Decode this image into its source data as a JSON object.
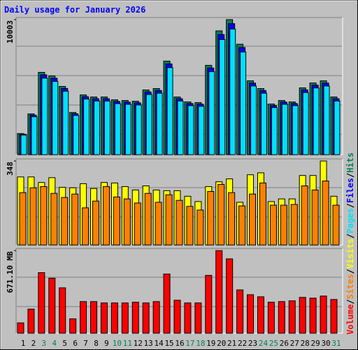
{
  "title": "Daily usage for January 2026",
  "separator": "/",
  "chart_data": [
    {
      "type": "bar",
      "ylim": [
        0,
        10003
      ],
      "yticks": [
        10003
      ],
      "series": [
        {
          "name": "Hits",
          "color": "#00805c",
          "values": [
            1563,
            3022,
            6096,
            5836,
            5054,
            3126,
            4428,
            4272,
            4272,
            4064,
            4012,
            3960,
            4793,
            4897,
            6929,
            4272,
            3908,
            3856,
            6617,
            9170,
            10003,
            8180,
            5471,
            4897,
            3752,
            4012,
            3908,
            4949,
            5314,
            5471,
            4272
          ]
        },
        {
          "name": "Files",
          "color": "#0000ff",
          "values": [
            1516,
            2931,
            5913,
            5661,
            4902,
            3032,
            4295,
            4144,
            4144,
            3942,
            3892,
            3841,
            4649,
            4750,
            6721,
            4144,
            3791,
            3740,
            6418,
            8895,
            9703,
            7935,
            5307,
            4750,
            3639,
            3892,
            3791,
            4801,
            5155,
            5307,
            4144
          ]
        },
        {
          "name": "Pages",
          "color": "#00e0ff",
          "values": [
            1454,
            2810,
            5669,
            5427,
            4700,
            2907,
            4118,
            3973,
            3973,
            3780,
            3731,
            3683,
            4457,
            4554,
            6444,
            3973,
            3634,
            3586,
            6154,
            8528,
            9303,
            7607,
            5088,
            4554,
            3489,
            3731,
            3634,
            4603,
            4942,
            5088,
            3973
          ]
        }
      ]
    },
    {
      "type": "bar",
      "ylim": [
        0,
        348
      ],
      "yticks": [
        348
      ],
      "series": [
        {
          "name": "Visits",
          "color": "#ffff00",
          "values": [
            282,
            282,
            259,
            279,
            239,
            237,
            254,
            234,
            259,
            257,
            242,
            228,
            245,
            228,
            225,
            225,
            202,
            180,
            242,
            262,
            274,
            177,
            291,
            299,
            180,
            191,
            191,
            288,
            288,
            348,
            202
          ]
        },
        {
          "name": "Sites",
          "color": "#ff8000",
          "values": [
            217,
            237,
            242,
            214,
            197,
            211,
            154,
            182,
            242,
            199,
            191,
            174,
            214,
            177,
            208,
            185,
            160,
            145,
            222,
            251,
            217,
            162,
            211,
            257,
            165,
            165,
            168,
            245,
            228,
            265,
            165
          ]
        }
      ]
    },
    {
      "type": "bar",
      "ylim": [
        0,
        671.1
      ],
      "yticks": [
        {
          "value": 671.1,
          "label": "671.10 MB"
        }
      ],
      "categories": [
        "1",
        "2",
        "3",
        "4",
        "5",
        "6",
        "7",
        "8",
        "9",
        "10",
        "11",
        "12",
        "13",
        "14",
        "15",
        "16",
        "17",
        "18",
        "19",
        "20",
        "21",
        "22",
        "23",
        "24",
        "25",
        "26",
        "27",
        "28",
        "29",
        "30",
        "31"
      ],
      "category_colors": [
        "#000000",
        "#000000",
        "#00805c",
        "#00805c",
        "#000000",
        "#000000",
        "#000000",
        "#000000",
        "#000000",
        "#00805c",
        "#00805c",
        "#000000",
        "#000000",
        "#000000",
        "#000000",
        "#000000",
        "#00805c",
        "#00805c",
        "#000000",
        "#000000",
        "#000000",
        "#000000",
        "#000000",
        "#00805c",
        "#00805c",
        "#000000",
        "#000000",
        "#000000",
        "#000000",
        "#000000",
        "#00805c"
      ],
      "series": [
        {
          "name": "Volume",
          "color": "#ff0000",
          "values": [
            84,
            196,
            492,
            447,
            369,
            117,
            257,
            257,
            246,
            246,
            246,
            252,
            246,
            257,
            481,
            268,
            246,
            246,
            470,
            671.1,
            604,
            352,
            313,
            296,
            252,
            257,
            263,
            291,
            285,
            302,
            274
          ]
        }
      ]
    }
  ]
}
